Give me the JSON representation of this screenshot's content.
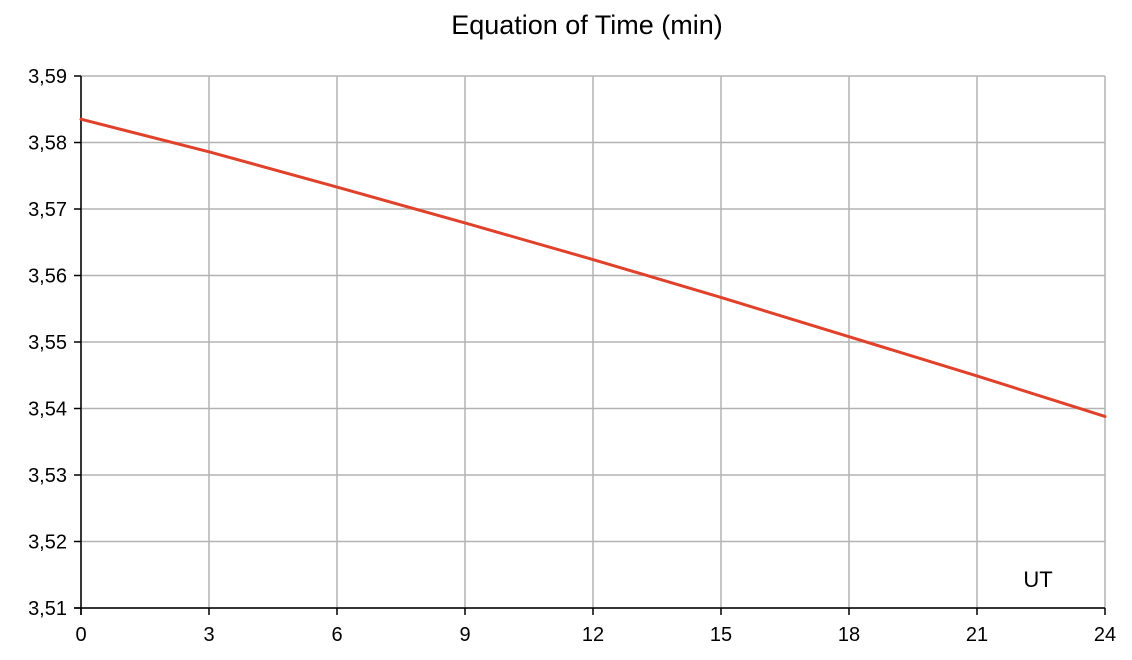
{
  "chart_data": {
    "type": "line",
    "title": "Equation of Time (min)",
    "xlabel": "UT",
    "ylabel": "",
    "xlim": [
      0,
      24
    ],
    "ylim": [
      3.51,
      3.59
    ],
    "x_ticks": [
      0,
      3,
      6,
      9,
      12,
      15,
      18,
      21,
      24
    ],
    "x_tick_labels": [
      "0",
      "3",
      "6",
      "9",
      "12",
      "15",
      "18",
      "21",
      "24"
    ],
    "y_ticks": [
      3.51,
      3.52,
      3.53,
      3.54,
      3.55,
      3.56,
      3.57,
      3.58,
      3.59
    ],
    "y_tick_labels": [
      "3,51",
      "3,52",
      "3,53",
      "3,54",
      "3,55",
      "3,56",
      "3,57",
      "3,58",
      "3,59"
    ],
    "grid": true,
    "legend": "none",
    "series": [
      {
        "color": "#e0412a",
        "x": [
          0,
          3,
          6,
          9,
          12,
          15,
          18,
          21,
          24
        ],
        "y": [
          3.5835,
          3.5786,
          3.5733,
          3.5679,
          3.5624,
          3.5567,
          3.5508,
          3.5449,
          3.5388
        ]
      }
    ]
  }
}
